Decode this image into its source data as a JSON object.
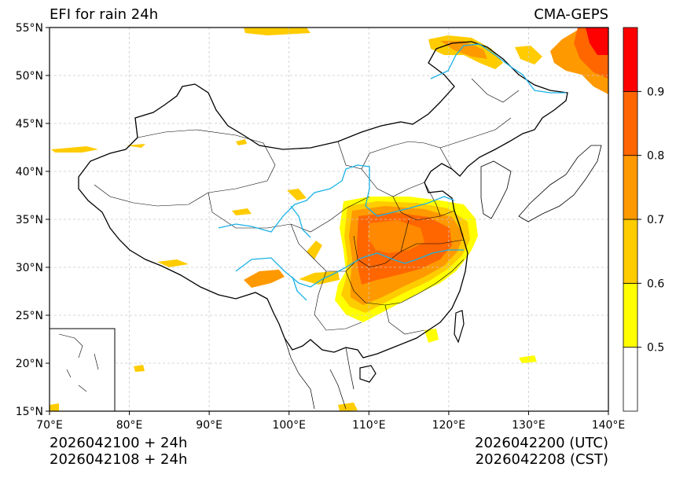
{
  "title": {
    "left": "EFI for rain 24h",
    "right": "CMA-GEPS"
  },
  "footer": {
    "init_utc": "2026042100 + 24h",
    "init_cst": "2026042108 + 24h",
    "valid_utc": "2026042200 (UTC)",
    "valid_cst": "2026042208 (CST)"
  },
  "axes": {
    "lon_ticks": [
      "70°E",
      "80°E",
      "90°E",
      "100°E",
      "110°E",
      "120°E",
      "130°E",
      "140°E"
    ],
    "lat_ticks": [
      "15°N",
      "20°N",
      "25°N",
      "30°N",
      "35°N",
      "40°N",
      "45°N",
      "50°N",
      "55°N"
    ],
    "lon_range": [
      70,
      140
    ],
    "lat_range": [
      15,
      55
    ],
    "grid": true
  },
  "colorbar": {
    "levels": [
      0.5,
      0.6,
      0.7,
      0.8,
      0.9
    ],
    "labels": [
      "0.5",
      "0.6",
      "0.7",
      "0.8",
      "0.9"
    ],
    "colors": [
      "#ffffff",
      "#ffff00",
      "#ffcc00",
      "#ff9900",
      "#ff6600",
      "#ff0000"
    ]
  },
  "colors": {
    "river": "#1ab2e6",
    "border": "#000000",
    "grid": "#c8c8c8"
  }
}
